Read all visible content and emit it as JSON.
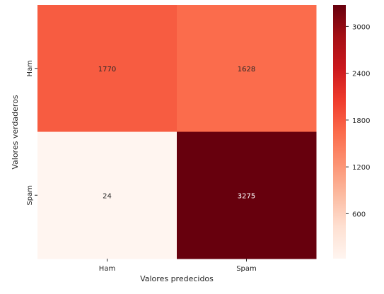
{
  "chart_data": {
    "type": "heatmap",
    "title": "",
    "xlabel": "Valores predecidos",
    "ylabel": "Valores verdaderos",
    "x_categories": [
      "Ham",
      "Spam"
    ],
    "y_categories": [
      "Ham",
      "Spam"
    ],
    "values": [
      [
        1770,
        1628
      ],
      [
        24,
        3275
      ]
    ],
    "colormap": "Reds",
    "color_range": [
      24,
      3275
    ],
    "colorbar_ticks": [
      600,
      1200,
      1800,
      2400,
      3000
    ],
    "annotations": true
  }
}
